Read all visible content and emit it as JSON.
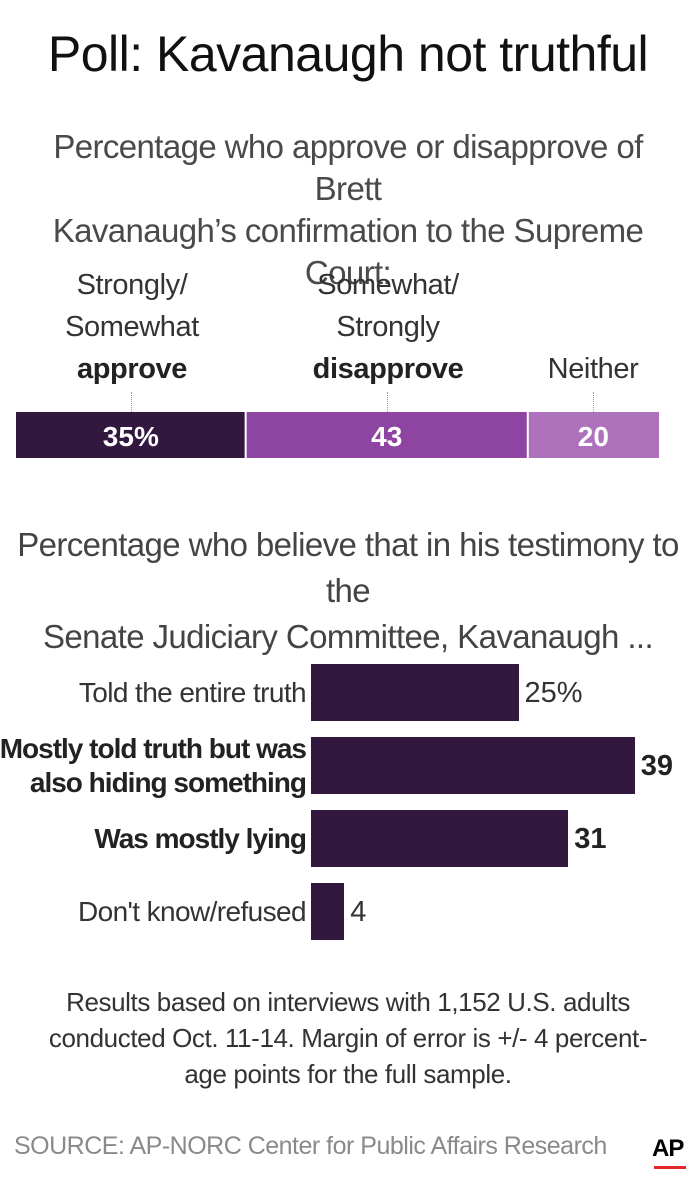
{
  "title": "Poll: Kavanaugh not truthful",
  "subtitle1_line1": "Percentage who approve or disapprove of Brett",
  "subtitle1_line2": "Kavanaugh’s confirmation to the Supreme Court:",
  "approve_label": {
    "line1": "Strongly/",
    "line2": "Somewhat",
    "line3": "approve"
  },
  "disapprove_label": {
    "line1": "Somewhat/",
    "line2": "Strongly",
    "line3": "disapprove"
  },
  "neither_label": "Neither",
  "subtitle2_line1": "Percentage who believe that in his testimony to the",
  "subtitle2_line2": "Senate Judiciary Committee, Kavanaugh ...",
  "note_line1": "Results based on interviews with 1,152 U.S. adults",
  "note_line2": "conducted Oct. 11-14. Margin of error is +/- 4 percent-",
  "note_line3": "age points for the full sample.",
  "source": "SOURCE: AP-NORC Center for Public Affairs Research",
  "logo": "AP",
  "colors": {
    "dark_purple": "#32173f",
    "mid_purple": "#8e45a2",
    "light_purple": "#ae72bd",
    "logo_red": "#e5252a"
  },
  "chart_data": [
    {
      "type": "bar",
      "stacked": true,
      "orientation": "horizontal",
      "categories": [
        "Strongly/Somewhat approve",
        "Somewhat/Strongly disapprove",
        "Neither"
      ],
      "values": [
        35,
        43,
        20
      ],
      "value_labels": [
        "35%",
        "43",
        "20"
      ],
      "colors": [
        "#32173f",
        "#8e45a2",
        "#ae72bd"
      ]
    },
    {
      "type": "bar",
      "orientation": "horizontal",
      "categories": [
        "Told the entire truth",
        "Mostly told truth but was also hiding something",
        "Was mostly lying",
        "Don't know/refused"
      ],
      "label_lines": [
        [
          "Told the entire truth"
        ],
        [
          "Mostly told truth but was",
          "also hiding something"
        ],
        [
          "Was mostly lying"
        ],
        [
          "Don't know/refused"
        ]
      ],
      "values": [
        25,
        39,
        31,
        4
      ],
      "value_labels": [
        "25%",
        "39",
        "31",
        "4"
      ],
      "bold": [
        false,
        true,
        true,
        false
      ],
      "color": "#32173f"
    }
  ]
}
